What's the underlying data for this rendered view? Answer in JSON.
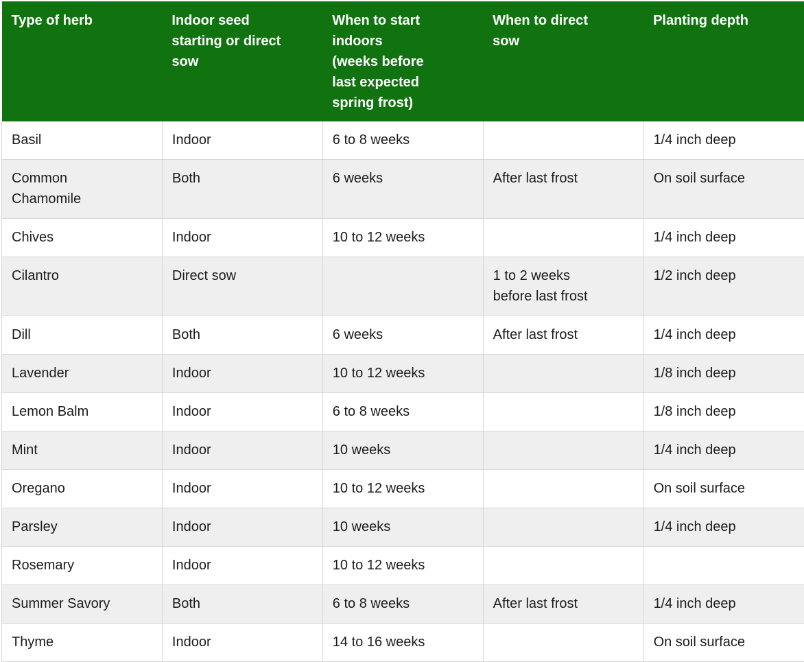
{
  "table": {
    "columns": [
      {
        "label": "Type of herb"
      },
      {
        "label": "Indoor seed\nstarting or direct\nsow"
      },
      {
        "label": "When to start\nindoors\n(weeks before\nlast expected\nspring frost)"
      },
      {
        "label": "When to direct\nsow"
      },
      {
        "label": "Planting depth"
      }
    ],
    "rows": [
      {
        "herb": "Basil",
        "method": "Indoor",
        "start_indoors": "6 to 8 weeks",
        "direct_sow": "",
        "depth": "1/4 inch deep"
      },
      {
        "herb": "Common\nChamomile",
        "method": "Both",
        "start_indoors": "6 weeks",
        "direct_sow": "After last frost",
        "depth": "On soil surface"
      },
      {
        "herb": "Chives",
        "method": "Indoor",
        "start_indoors": "10 to 12 weeks",
        "direct_sow": "",
        "depth": "1/4 inch deep"
      },
      {
        "herb": "Cilantro",
        "method": "Direct sow",
        "start_indoors": "",
        "direct_sow": "1 to 2 weeks\nbefore last frost",
        "depth": "1/2 inch deep"
      },
      {
        "herb": "Dill",
        "method": "Both",
        "start_indoors": "6 weeks",
        "direct_sow": "After last frost",
        "depth": "1/4 inch deep"
      },
      {
        "herb": "Lavender",
        "method": "Indoor",
        "start_indoors": "10 to 12 weeks",
        "direct_sow": "",
        "depth": "1/8 inch deep"
      },
      {
        "herb": "Lemon Balm",
        "method": "Indoor",
        "start_indoors": "6 to 8 weeks",
        "direct_sow": "",
        "depth": "1/8 inch deep"
      },
      {
        "herb": "Mint",
        "method": "Indoor",
        "start_indoors": "10 weeks",
        "direct_sow": "",
        "depth": "1/4 inch deep"
      },
      {
        "herb": "Oregano",
        "method": "Indoor",
        "start_indoors": "10 to 12 weeks",
        "direct_sow": "",
        "depth": "On soil surface"
      },
      {
        "herb": "Parsley",
        "method": "Indoor",
        "start_indoors": "10 weeks",
        "direct_sow": "",
        "depth": "1/4 inch deep"
      },
      {
        "herb": "Rosemary",
        "method": "Indoor",
        "start_indoors": "10 to 12 weeks",
        "direct_sow": "",
        "depth": ""
      },
      {
        "herb": "Summer Savory",
        "method": "Both",
        "start_indoors": "6 to 8 weeks",
        "direct_sow": "After last frost",
        "depth": "1/4 inch deep"
      },
      {
        "herb": "Thyme",
        "method": "Indoor",
        "start_indoors": "14 to 16 weeks",
        "direct_sow": "",
        "depth": "On soil surface"
      }
    ]
  },
  "colors": {
    "header_bg": "#117310",
    "header_text": "#ffffff",
    "row_bg": "#ffffff",
    "row_alt_bg": "#efefef",
    "border": "#d8d8d8",
    "body_text": "#1c1c1c"
  }
}
